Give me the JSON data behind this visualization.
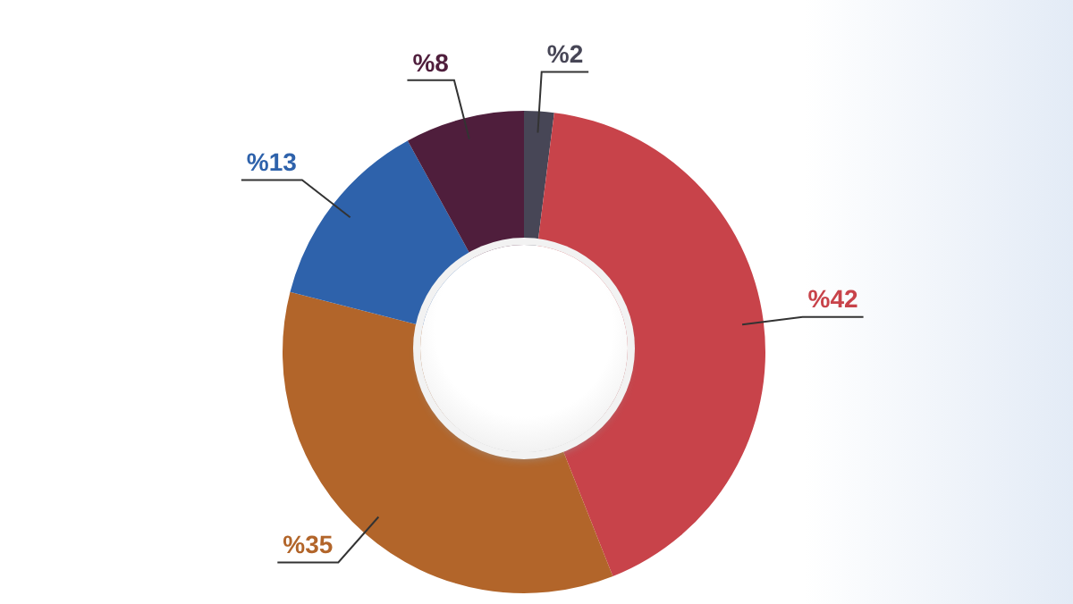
{
  "chart_data": {
    "type": "donut",
    "categories": [
      null,
      null,
      null,
      null,
      null
    ],
    "values": [
      2,
      42,
      35,
      13,
      8
    ],
    "colors": [
      "#474656",
      "#c8434a",
      "#b2652a",
      "#2e62ab",
      "#4f1e3c"
    ],
    "value_labels": [
      "%2",
      "%42",
      "%35",
      "%13",
      "%8"
    ],
    "legend": false
  }
}
